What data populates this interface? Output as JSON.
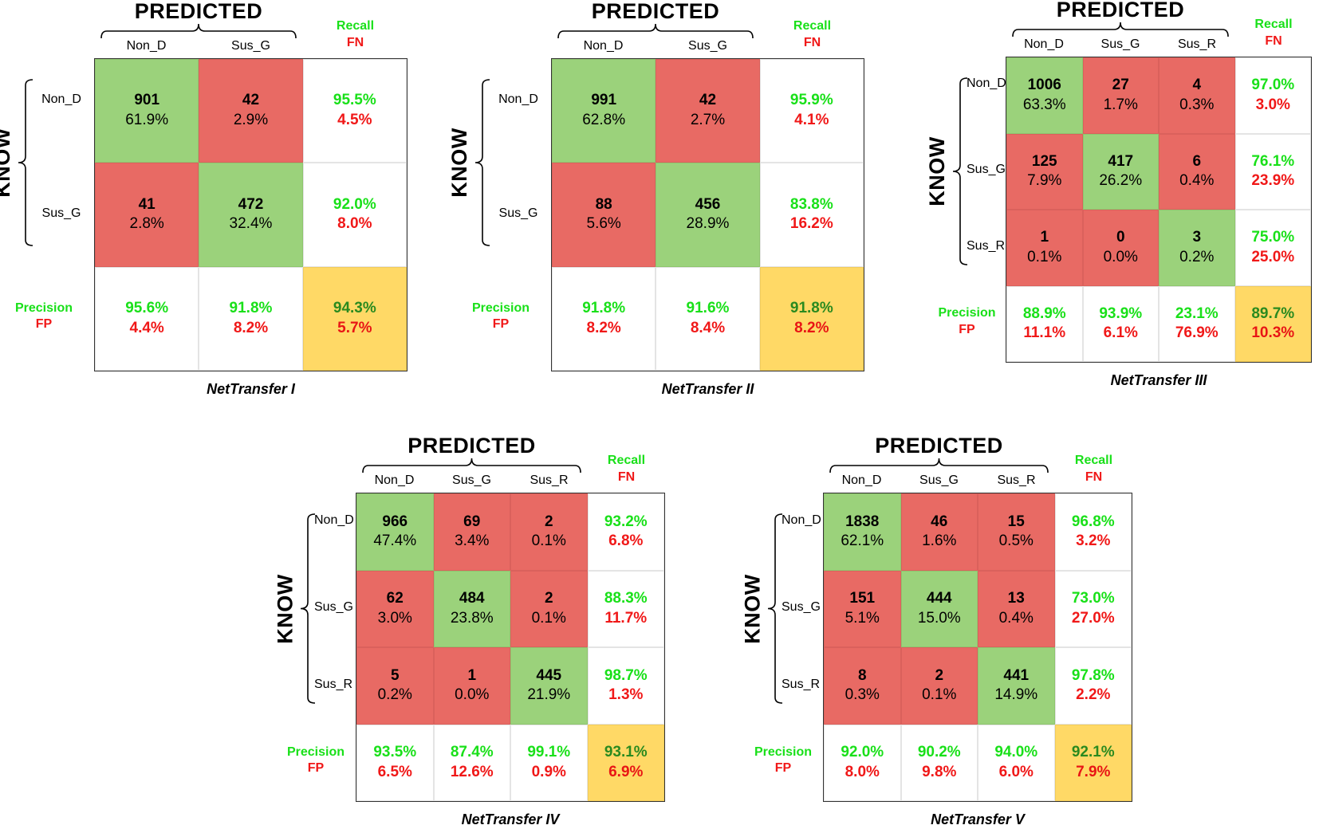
{
  "labels": {
    "predicted": "PREDICTED",
    "know": "KNOW",
    "recall": "Recall",
    "fn": "FN",
    "precision": "Precision",
    "fp": "FP"
  },
  "colors": {
    "correct": "#9bd27b",
    "error": "#e86a64",
    "overall": "#ffd966",
    "good_text": "#19e019",
    "bad_text": "#f01818"
  },
  "chart_data": [
    {
      "type": "table",
      "title": "NetTransfer I",
      "classes": [
        "Non_D",
        "Sus_G"
      ],
      "counts": [
        [
          901,
          42
        ],
        [
          41,
          472
        ]
      ],
      "percents": [
        [
          "61.9%",
          "2.9%"
        ],
        [
          "2.8%",
          "32.4%"
        ]
      ],
      "recall": [
        "95.5%",
        "92.0%"
      ],
      "fn": [
        "4.5%",
        "8.0%"
      ],
      "precision": [
        "95.6%",
        "91.8%"
      ],
      "fp": [
        "4.4%",
        "8.2%"
      ],
      "overall": {
        "accuracy": "94.3%",
        "error": "5.7%"
      }
    },
    {
      "type": "table",
      "title": "NetTransfer II",
      "classes": [
        "Non_D",
        "Sus_G"
      ],
      "counts": [
        [
          991,
          42
        ],
        [
          88,
          456
        ]
      ],
      "percents": [
        [
          "62.8%",
          "2.7%"
        ],
        [
          "5.6%",
          "28.9%"
        ]
      ],
      "recall": [
        "95.9%",
        "83.8%"
      ],
      "fn": [
        "4.1%",
        "16.2%"
      ],
      "precision": [
        "91.8%",
        "91.6%"
      ],
      "fp": [
        "8.2%",
        "8.4%"
      ],
      "overall": {
        "accuracy": "91.8%",
        "error": "8.2%"
      }
    },
    {
      "type": "table",
      "title": "NetTransfer III",
      "classes": [
        "Non_D",
        "Sus_G",
        "Sus_R"
      ],
      "counts": [
        [
          1006,
          27,
          4
        ],
        [
          125,
          417,
          6
        ],
        [
          1,
          0,
          3
        ]
      ],
      "percents": [
        [
          "63.3%",
          "1.7%",
          "0.3%"
        ],
        [
          "7.9%",
          "26.2%",
          "0.4%"
        ],
        [
          "0.1%",
          "0.0%",
          "0.2%"
        ]
      ],
      "recall": [
        "97.0%",
        "76.1%",
        "75.0%"
      ],
      "fn": [
        "3.0%",
        "23.9%",
        "25.0%"
      ],
      "precision": [
        "88.9%",
        "93.9%",
        "23.1%"
      ],
      "fp": [
        "11.1%",
        "6.1%",
        "76.9%"
      ],
      "overall": {
        "accuracy": "89.7%",
        "error": "10.3%"
      }
    },
    {
      "type": "table",
      "title": "NetTransfer IV",
      "classes": [
        "Non_D",
        "Sus_G",
        "Sus_R"
      ],
      "counts": [
        [
          966,
          69,
          2
        ],
        [
          62,
          484,
          2
        ],
        [
          5,
          1,
          445
        ]
      ],
      "percents": [
        [
          "47.4%",
          "3.4%",
          "0.1%"
        ],
        [
          "3.0%",
          "23.8%",
          "0.1%"
        ],
        [
          "0.2%",
          "0.0%",
          "21.9%"
        ]
      ],
      "recall": [
        "93.2%",
        "88.3%",
        "98.7%"
      ],
      "fn": [
        "6.8%",
        "11.7%",
        "1.3%"
      ],
      "precision": [
        "93.5%",
        "87.4%",
        "99.1%"
      ],
      "fp": [
        "6.5%",
        "12.6%",
        "0.9%"
      ],
      "overall": {
        "accuracy": "93.1%",
        "error": "6.9%"
      }
    },
    {
      "type": "table",
      "title": "NetTransfer V",
      "classes": [
        "Non_D",
        "Sus_G",
        "Sus_R"
      ],
      "counts": [
        [
          1838,
          46,
          15
        ],
        [
          151,
          444,
          13
        ],
        [
          8,
          2,
          441
        ]
      ],
      "percents": [
        [
          "62.1%",
          "1.6%",
          "0.5%"
        ],
        [
          "5.1%",
          "15.0%",
          "0.4%"
        ],
        [
          "0.3%",
          "0.1%",
          "14.9%"
        ]
      ],
      "recall": [
        "96.8%",
        "73.0%",
        "97.8%"
      ],
      "fn": [
        "3.2%",
        "27.0%",
        "2.2%"
      ],
      "precision": [
        "92.0%",
        "90.2%",
        "94.0%"
      ],
      "fp": [
        "8.0%",
        "9.8%",
        "6.0%"
      ],
      "overall": {
        "accuracy": "92.1%",
        "error": "7.9%"
      }
    }
  ]
}
